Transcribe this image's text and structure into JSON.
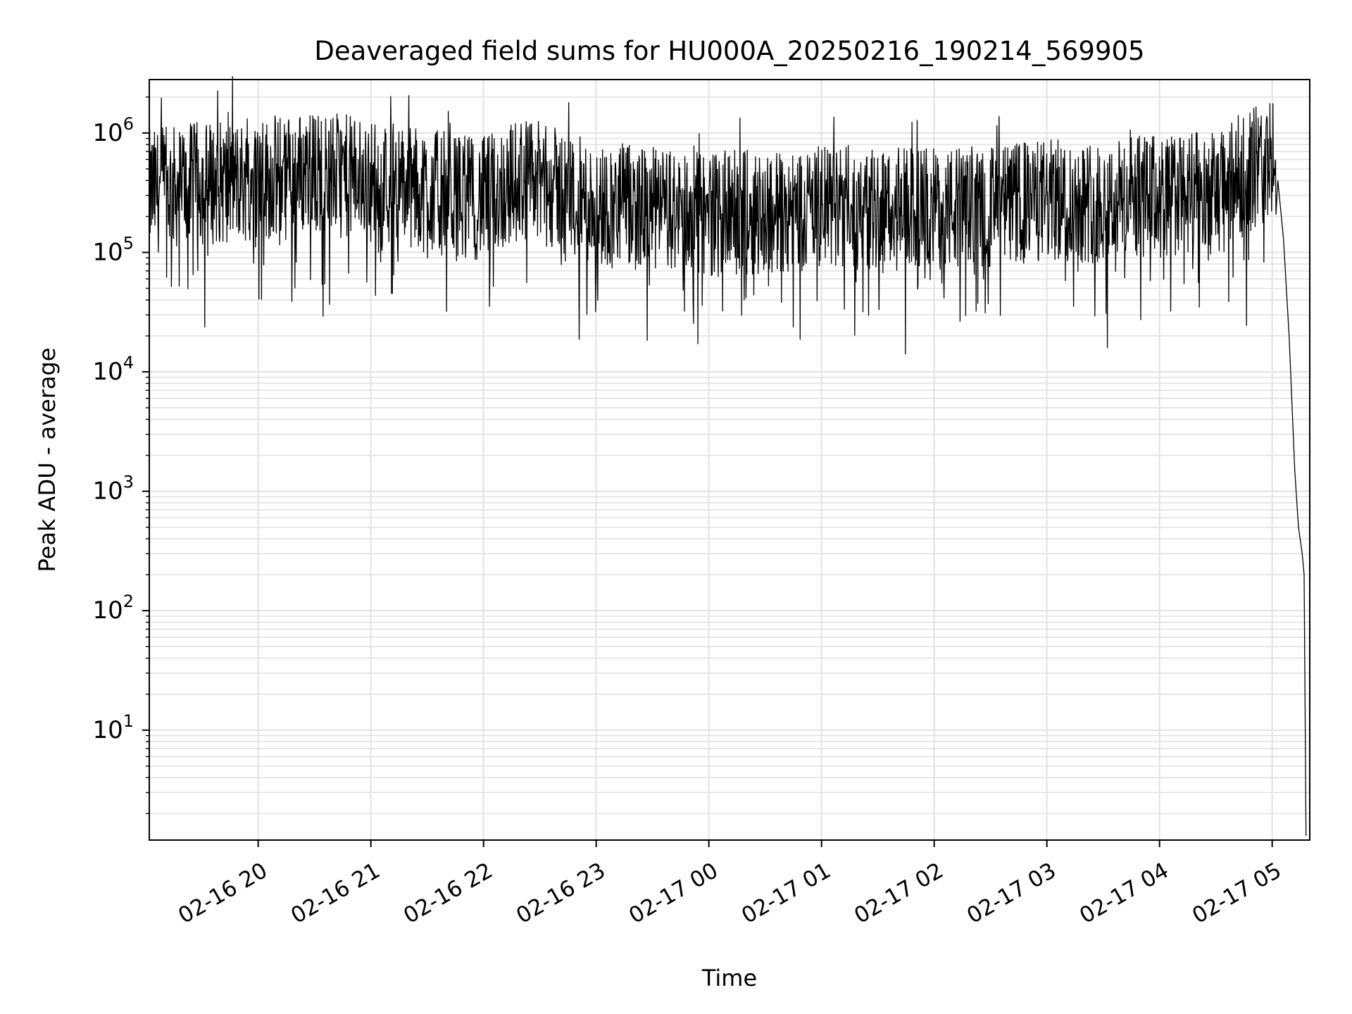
{
  "chart_data": {
    "type": "line",
    "title": "Deaveraged field sums for HU000A_20250216_190214_569905",
    "xlabel": "Time",
    "ylabel": "Peak ADU - average",
    "yscale": "log",
    "ylim": [
      1.2,
      2800000
    ],
    "xlim": [
      "2025-02-16 19:02",
      "2025-02-17 05:20"
    ],
    "x_tick_labels": [
      "02-16 20",
      "02-16 21",
      "02-16 22",
      "02-16 23",
      "02-17 00",
      "02-17 01",
      "02-17 02",
      "02-17 03",
      "02-17 04",
      "02-17 05"
    ],
    "x_tick_times": [
      "2025-02-16 20:00",
      "2025-02-16 21:00",
      "2025-02-16 22:00",
      "2025-02-16 23:00",
      "2025-02-17 00:00",
      "2025-02-17 01:00",
      "2025-02-17 02:00",
      "2025-02-17 03:00",
      "2025-02-17 04:00",
      "2025-02-17 05:00"
    ],
    "y_ticks": [
      {
        "base": "10",
        "exp": "1",
        "value": 10
      },
      {
        "base": "10",
        "exp": "2",
        "value": 100
      },
      {
        "base": "10",
        "exp": "3",
        "value": 1000
      },
      {
        "base": "10",
        "exp": "4",
        "value": 10000
      },
      {
        "base": "10",
        "exp": "5",
        "value": 100000
      },
      {
        "base": "10",
        "exp": "6",
        "value": 1000000
      }
    ],
    "grid": true,
    "series": [
      {
        "color": "#000000",
        "x": [
          "2025-02-16 19:02",
          "2025-02-16 19:30",
          "2025-02-16 20:00",
          "2025-02-16 20:30",
          "2025-02-16 21:00",
          "2025-02-16 21:30",
          "2025-02-16 22:00",
          "2025-02-16 22:20",
          "2025-02-16 22:40",
          "2025-02-16 23:00",
          "2025-02-16 23:30",
          "2025-02-17 00:00",
          "2025-02-17 00:30",
          "2025-02-17 01:00",
          "2025-02-17 01:30",
          "2025-02-17 02:00",
          "2025-02-17 02:30",
          "2025-02-17 03:00",
          "2025-02-17 03:30",
          "2025-02-17 04:00",
          "2025-02-17 04:30",
          "2025-02-17 04:50",
          "2025-02-17 05:00",
          "2025-02-17 05:03",
          "2025-02-17 05:06",
          "2025-02-17 05:09",
          "2025-02-17 05:12",
          "2025-02-17 05:14",
          "2025-02-17 05:16",
          "2025-02-17 05:17",
          "2025-02-17 05:18"
        ],
        "y": [
          320000,
          380000,
          400000,
          480000,
          400000,
          330000,
          280000,
          420000,
          330000,
          250000,
          230000,
          210000,
          220000,
          240000,
          235000,
          230000,
          240000,
          270000,
          270000,
          300000,
          310000,
          520000,
          580000,
          400000,
          130000,
          20000,
          1500,
          500,
          300,
          200,
          1.3
        ],
        "noise_spikes_low": [
          70000,
          50000,
          45000,
          35000,
          30000,
          32000,
          38000,
          33000,
          32000,
          35000,
          32000
        ],
        "noise_spikes_high": [
          1500000,
          1030000,
          1000000,
          950000,
          900000,
          820000
        ]
      }
    ]
  }
}
